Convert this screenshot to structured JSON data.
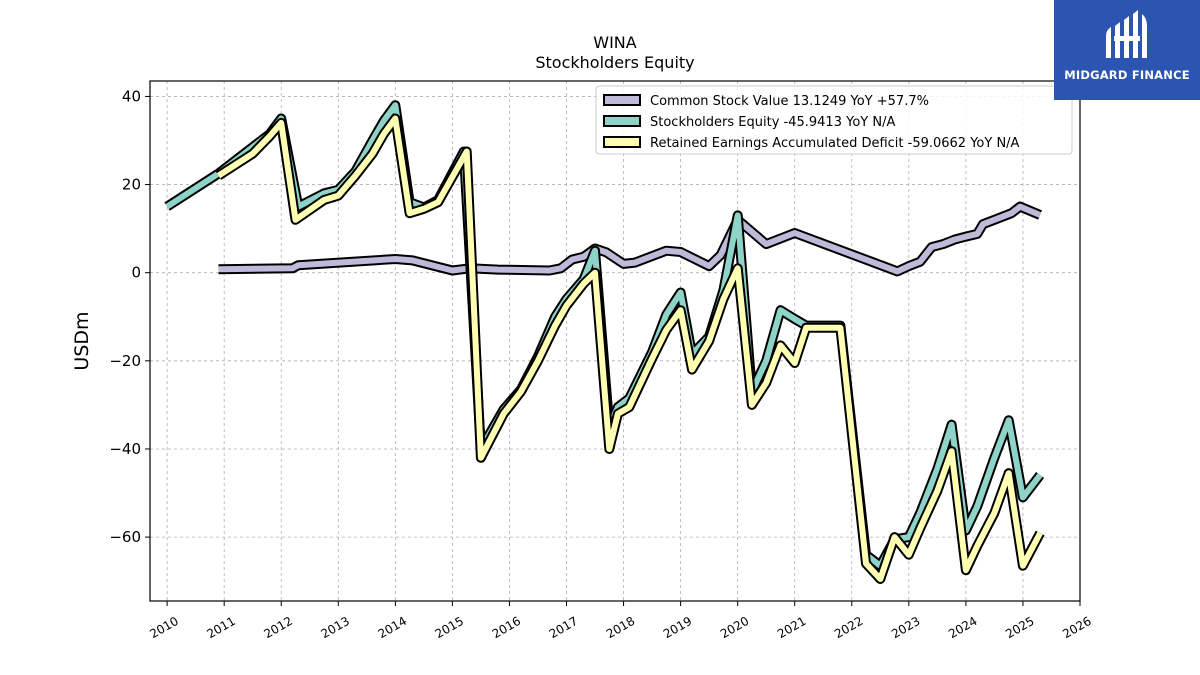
{
  "brand": {
    "name": "MIDGARD FINANCE",
    "color": "#2b55b0"
  },
  "chart_data": {
    "type": "line",
    "title": "WINA",
    "subtitle": "Stockholders  Equity",
    "xlabel": "",
    "ylabel": "USDm",
    "xlim": [
      2009.7,
      2026.0
    ],
    "ylim": [
      -74.5,
      43.5
    ],
    "x_ticks": [
      "2010",
      "2011",
      "2012",
      "2013",
      "2014",
      "2015",
      "2016",
      "2017",
      "2018",
      "2019",
      "2020",
      "2021",
      "2022",
      "2023",
      "2024",
      "2025",
      "2026"
    ],
    "y_ticks": [
      40,
      20,
      0,
      -20,
      -40,
      -60
    ],
    "y_tick_labels": [
      "40",
      "20",
      "0",
      "−20",
      "−40",
      "−60"
    ],
    "grid": true,
    "legend_position": "top-right",
    "series": [
      {
        "name": "Common Stock Value  13.1249 YoY +57.7%",
        "color": "#bebada",
        "points": [
          [
            2010.9,
            0.8
          ],
          [
            2012.2,
            1.0
          ],
          [
            2012.3,
            1.7
          ],
          [
            2014.0,
            3.1
          ],
          [
            2014.3,
            2.8
          ],
          [
            2015.0,
            0.5
          ],
          [
            2015.3,
            1.0
          ],
          [
            2015.8,
            0.7
          ],
          [
            2016.7,
            0.5
          ],
          [
            2016.9,
            1.0
          ],
          [
            2017.1,
            3.0
          ],
          [
            2017.3,
            3.6
          ],
          [
            2017.5,
            5.5
          ],
          [
            2017.7,
            4.6
          ],
          [
            2018.0,
            2.0
          ],
          [
            2018.2,
            2.3
          ],
          [
            2018.75,
            5.0
          ],
          [
            2019.0,
            4.7
          ],
          [
            2019.5,
            1.5
          ],
          [
            2019.7,
            4.0
          ],
          [
            2020.0,
            12.0
          ],
          [
            2020.5,
            6.5
          ],
          [
            2021.0,
            9.0
          ],
          [
            2022.8,
            0.3
          ],
          [
            2023.0,
            1.5
          ],
          [
            2023.2,
            2.5
          ],
          [
            2023.4,
            5.8
          ],
          [
            2023.6,
            6.5
          ],
          [
            2023.8,
            7.5
          ],
          [
            2024.0,
            8.2
          ],
          [
            2024.2,
            8.8
          ],
          [
            2024.3,
            11.0
          ],
          [
            2024.5,
            12.0
          ],
          [
            2024.8,
            13.5
          ],
          [
            2024.95,
            15.0
          ],
          [
            2025.3,
            13.1
          ]
        ]
      },
      {
        "name": "Stockholders Equity  -45.9413 YoY N/A",
        "color": "#8dd3c7",
        "points": [
          [
            2010.0,
            15.0
          ],
          [
            2010.9,
            22.5
          ],
          [
            2011.4,
            27.5
          ],
          [
            2011.8,
            31.5
          ],
          [
            2012.0,
            35.0
          ],
          [
            2012.3,
            15.0
          ],
          [
            2012.75,
            18.0
          ],
          [
            2013.0,
            18.8
          ],
          [
            2013.3,
            23.0
          ],
          [
            2013.6,
            30.0
          ],
          [
            2013.8,
            34.5
          ],
          [
            2014.0,
            38.0
          ],
          [
            2014.25,
            16.0
          ],
          [
            2014.5,
            14.8
          ],
          [
            2014.75,
            16.5
          ],
          [
            2015.2,
            27.5
          ],
          [
            2015.5,
            -40.0
          ],
          [
            2015.9,
            -31.0
          ],
          [
            2016.2,
            -26.5
          ],
          [
            2016.5,
            -19.0
          ],
          [
            2016.8,
            -10.0
          ],
          [
            2017.0,
            -6.0
          ],
          [
            2017.3,
            -1.5
          ],
          [
            2017.5,
            5.0
          ],
          [
            2017.75,
            -35.0
          ],
          [
            2017.9,
            -30.5
          ],
          [
            2018.1,
            -28.5
          ],
          [
            2018.5,
            -18.0
          ],
          [
            2018.75,
            -9.5
          ],
          [
            2019.0,
            -4.5
          ],
          [
            2019.2,
            -18.5
          ],
          [
            2019.5,
            -14.5
          ],
          [
            2019.75,
            -4.0
          ],
          [
            2020.0,
            13.0
          ],
          [
            2020.25,
            -27.0
          ],
          [
            2020.5,
            -20.0
          ],
          [
            2020.75,
            -8.5
          ],
          [
            2021.0,
            -10.5
          ],
          [
            2021.2,
            -12.0
          ],
          [
            2021.8,
            -12.0
          ],
          [
            2022.25,
            -64.0
          ],
          [
            2022.5,
            -66.5
          ],
          [
            2022.75,
            -60.5
          ],
          [
            2023.0,
            -60.0
          ],
          [
            2023.2,
            -54.5
          ],
          [
            2023.5,
            -44.5
          ],
          [
            2023.75,
            -34.5
          ],
          [
            2024.0,
            -58.5
          ],
          [
            2024.2,
            -53.0
          ],
          [
            2024.5,
            -42.0
          ],
          [
            2024.75,
            -33.5
          ],
          [
            2025.0,
            -51.0
          ],
          [
            2025.3,
            -45.9
          ]
        ]
      },
      {
        "name": "Retained Earnings Accumulated Deficit  -59.0662 YoY N/A",
        "color": "#ffffb3",
        "points": [
          [
            2010.9,
            22.0
          ],
          [
            2011.5,
            27.0
          ],
          [
            2011.8,
            31.0
          ],
          [
            2012.0,
            34.0
          ],
          [
            2012.25,
            12.0
          ],
          [
            2012.75,
            16.5
          ],
          [
            2013.0,
            17.5
          ],
          [
            2013.3,
            22.0
          ],
          [
            2013.6,
            27.0
          ],
          [
            2013.8,
            31.5
          ],
          [
            2014.0,
            35.0
          ],
          [
            2014.25,
            13.5
          ],
          [
            2014.5,
            14.5
          ],
          [
            2014.75,
            16.0
          ],
          [
            2015.25,
            27.5
          ],
          [
            2015.5,
            -42.0
          ],
          [
            2015.9,
            -32.0
          ],
          [
            2016.2,
            -27.0
          ],
          [
            2016.5,
            -20.0
          ],
          [
            2016.8,
            -12.0
          ],
          [
            2017.0,
            -7.5
          ],
          [
            2017.3,
            -2.5
          ],
          [
            2017.5,
            0.0
          ],
          [
            2017.75,
            -40.0
          ],
          [
            2017.9,
            -32.0
          ],
          [
            2018.1,
            -30.5
          ],
          [
            2018.5,
            -19.5
          ],
          [
            2018.75,
            -13.0
          ],
          [
            2019.0,
            -8.5
          ],
          [
            2019.2,
            -22.0
          ],
          [
            2019.5,
            -15.5
          ],
          [
            2019.75,
            -6.0
          ],
          [
            2020.0,
            1.0
          ],
          [
            2020.25,
            -30.0
          ],
          [
            2020.5,
            -25.0
          ],
          [
            2020.75,
            -16.5
          ],
          [
            2021.0,
            -20.5
          ],
          [
            2021.2,
            -12.5
          ],
          [
            2021.8,
            -12.5
          ],
          [
            2022.25,
            -66.0
          ],
          [
            2022.5,
            -69.5
          ],
          [
            2022.75,
            -60.0
          ],
          [
            2023.0,
            -64.0
          ],
          [
            2023.2,
            -58.0
          ],
          [
            2023.5,
            -49.5
          ],
          [
            2023.75,
            -40.5
          ],
          [
            2024.0,
            -67.5
          ],
          [
            2024.2,
            -62.0
          ],
          [
            2024.5,
            -54.5
          ],
          [
            2024.75,
            -45.5
          ],
          [
            2025.0,
            -66.5
          ],
          [
            2025.3,
            -59.1
          ]
        ]
      }
    ]
  }
}
